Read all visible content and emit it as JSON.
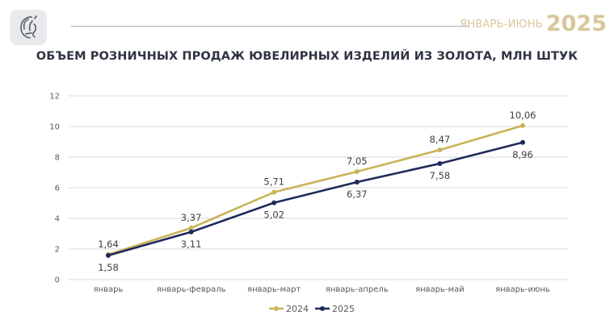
{
  "header": {
    "period_label": "ЯНВАРЬ-ИЮНЬ",
    "period_year": "2025"
  },
  "colors": {
    "gold": "#c9b458",
    "navy": "#1d2a5c",
    "grid": "#d9d9d9",
    "period": "#d8c79a"
  },
  "chart_data": {
    "type": "line",
    "title": "ОБЪЕМ РОЗНИЧНЫХ ПРОДАЖ ЮВЕЛИРНЫХ ИЗДЕЛИЙ ИЗ ЗОЛОТА, МЛН ШТУК",
    "categories": [
      "январь",
      "январь-февраль",
      "январь-март",
      "январь-апрель",
      "январь-май",
      "январь-июнь"
    ],
    "ylim": [
      0,
      12
    ],
    "yticks": [
      0,
      2,
      4,
      6,
      8,
      10,
      12
    ],
    "grid": true,
    "legend_position": "bottom-center",
    "series": [
      {
        "name": "2024",
        "color": "#c9b458",
        "values": [
          1.64,
          3.37,
          5.71,
          7.05,
          8.47,
          10.06
        ],
        "labels": [
          "1,64",
          "3,37",
          "5,71",
          "7,05",
          "8,47",
          "10,06"
        ]
      },
      {
        "name": "2025",
        "color": "#1d2a5c",
        "values": [
          1.58,
          3.11,
          5.02,
          6.37,
          7.58,
          8.96
        ],
        "labels": [
          "1,58",
          "3,11",
          "5,02",
          "6,37",
          "7,58",
          "8,96"
        ]
      }
    ]
  }
}
